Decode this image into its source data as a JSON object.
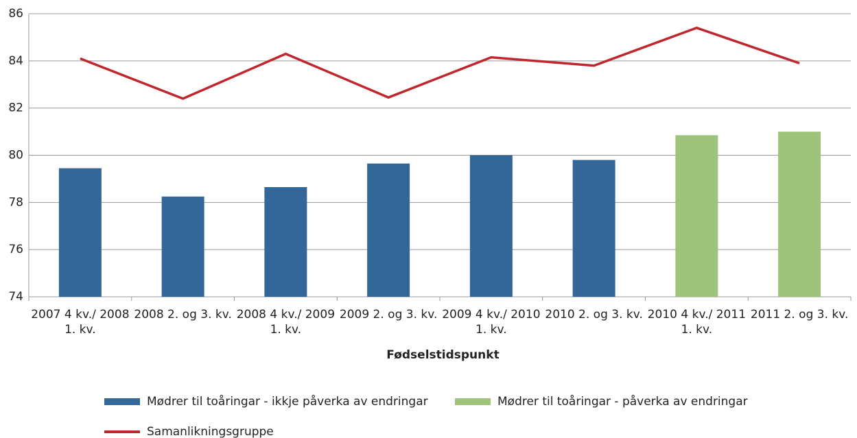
{
  "chart_data": {
    "type": "bar-line",
    "x_label": "Fødselstidspunkt",
    "categories": [
      "2007 4 kv./ 2008 1. kv.",
      "2008 2. og 3. kv.",
      "2008 4 kv./ 2009 1. kv.",
      "2009 2. og 3. kv.",
      "2009 4 kv./ 2010 1. kv.",
      "2010 2. og 3. kv.",
      "2010 4 kv./ 2011 1. kv.",
      "2011 2. og 3. kv."
    ],
    "series": [
      {
        "name": "Mødrer til toåringar - ikkje påverka av endringar",
        "type": "bar",
        "color": "#336699",
        "values": [
          79.45,
          78.25,
          78.65,
          79.65,
          80.0,
          79.8,
          null,
          null
        ]
      },
      {
        "name": "Mødrer til toåringar - påverka av endringar",
        "type": "bar",
        "color": "#9dc47a",
        "values": [
          null,
          null,
          null,
          null,
          null,
          null,
          80.85,
          81.0
        ]
      },
      {
        "name": "Samanlikningsgruppe",
        "type": "line",
        "color": "#c0272d",
        "values": [
          84.1,
          82.4,
          84.3,
          82.45,
          84.15,
          83.8,
          85.4,
          83.9
        ]
      }
    ],
    "ylim": [
      74,
      86
    ],
    "yticks": [
      74,
      76,
      78,
      80,
      82,
      84,
      86
    ],
    "grid": true
  }
}
